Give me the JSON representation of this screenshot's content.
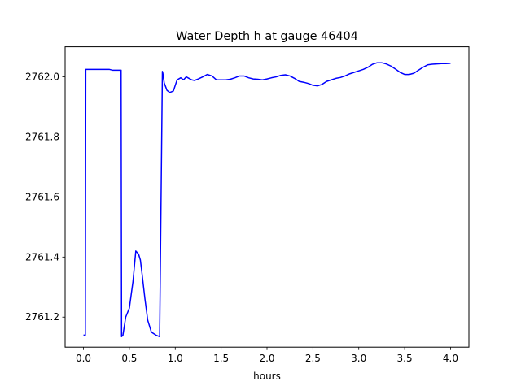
{
  "chart_data": {
    "type": "line",
    "title": "Water Depth h at gauge 46404",
    "xlabel": "hours",
    "ylabel": "",
    "xlim": [
      -0.2,
      4.2
    ],
    "ylim": [
      2761.1,
      2762.1
    ],
    "xticks": [
      0.0,
      0.5,
      1.0,
      1.5,
      2.0,
      2.5,
      3.0,
      3.5,
      4.0
    ],
    "xtick_labels": [
      "0.0",
      "0.5",
      "1.0",
      "1.5",
      "2.0",
      "2.5",
      "3.0",
      "3.5",
      "4.0"
    ],
    "yticks": [
      2761.2,
      2761.4,
      2761.6,
      2761.8,
      2762.0
    ],
    "ytick_labels": [
      "2761.2",
      "2761.4",
      "2761.6",
      "2761.8",
      "2762.0"
    ],
    "grid": false,
    "series": [
      {
        "color": "#0000ff",
        "x": [
          0.0,
          0.02,
          0.025,
          0.1,
          0.2,
          0.28,
          0.32,
          0.36,
          0.41,
          0.415,
          0.43,
          0.46,
          0.5,
          0.54,
          0.57,
          0.6,
          0.62,
          0.64,
          0.67,
          0.7,
          0.74,
          0.79,
          0.83,
          0.86,
          0.865,
          0.88,
          0.91,
          0.94,
          0.98,
          1.02,
          1.06,
          1.09,
          1.12,
          1.15,
          1.18,
          1.21,
          1.25,
          1.3,
          1.35,
          1.4,
          1.45,
          1.5,
          1.55,
          1.6,
          1.65,
          1.7,
          1.75,
          1.8,
          1.85,
          1.9,
          1.95,
          2.0,
          2.05,
          2.1,
          2.15,
          2.2,
          2.25,
          2.3,
          2.35,
          2.4,
          2.45,
          2.5,
          2.55,
          2.6,
          2.65,
          2.7,
          2.75,
          2.8,
          2.85,
          2.9,
          2.95,
          3.0,
          3.05,
          3.1,
          3.15,
          3.2,
          3.25,
          3.3,
          3.35,
          3.4,
          3.45,
          3.5,
          3.55,
          3.6,
          3.65,
          3.7,
          3.75,
          3.8,
          3.85,
          3.9,
          3.95,
          4.0
        ],
        "y": [
          2761.14,
          2761.14,
          2762.025,
          2762.025,
          2762.025,
          2762.025,
          2762.022,
          2762.022,
          2762.022,
          2761.135,
          2761.14,
          2761.2,
          2761.23,
          2761.32,
          2761.42,
          2761.41,
          2761.39,
          2761.34,
          2761.26,
          2761.19,
          2761.15,
          2761.14,
          2761.135,
          2762.018,
          2762.012,
          2761.98,
          2761.955,
          2761.948,
          2761.953,
          2761.99,
          2761.997,
          2761.99,
          2762.0,
          2761.995,
          2761.99,
          2761.988,
          2761.993,
          2762.0,
          2762.008,
          2762.003,
          2761.99,
          2761.99,
          2761.99,
          2761.992,
          2761.997,
          2762.003,
          2762.003,
          2761.997,
          2761.993,
          2761.992,
          2761.99,
          2761.993,
          2761.997,
          2762.0,
          2762.005,
          2762.007,
          2762.003,
          2761.995,
          2761.985,
          2761.982,
          2761.978,
          2761.972,
          2761.97,
          2761.975,
          2761.985,
          2761.99,
          2761.995,
          2761.998,
          2762.003,
          2762.01,
          2762.015,
          2762.02,
          2762.025,
          2762.032,
          2762.042,
          2762.047,
          2762.047,
          2762.043,
          2762.036,
          2762.026,
          2762.015,
          2762.008,
          2762.008,
          2762.012,
          2762.022,
          2762.032,
          2762.04,
          2762.042,
          2762.043,
          2762.044,
          2762.044,
          2762.045
        ]
      }
    ]
  }
}
